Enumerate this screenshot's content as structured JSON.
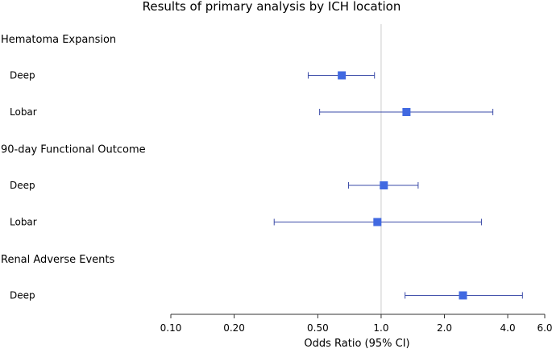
{
  "chart_data": {
    "type": "forest",
    "title": "Results of primary analysis by ICH location",
    "xlabel": "Odds Ratio (95% CI)",
    "x_scale": "log",
    "xlim": [
      0.1,
      6.0
    ],
    "xticks": [
      0.1,
      0.2,
      0.5,
      1.0,
      2.0,
      4.0,
      6.0
    ],
    "xtick_labels": [
      "0.10",
      "0.20",
      "0.50",
      "1.0",
      "2.0",
      "4.0",
      "6.0"
    ],
    "reference_line": 1.0,
    "grid": false,
    "groups": [
      {
        "name": "Hematoma Expansion",
        "rows": [
          {
            "label": "Deep",
            "or": 0.65,
            "ci_low": 0.45,
            "ci_high": 0.93
          },
          {
            "label": "Lobar",
            "or": 1.32,
            "ci_low": 0.51,
            "ci_high": 3.4
          }
        ]
      },
      {
        "name": "90-day Functional Outcome",
        "rows": [
          {
            "label": "Deep",
            "or": 1.03,
            "ci_low": 0.7,
            "ci_high": 1.5
          },
          {
            "label": "Lobar",
            "or": 0.96,
            "ci_low": 0.31,
            "ci_high": 3.0
          }
        ]
      },
      {
        "name": "Renal Adverse Events",
        "rows": [
          {
            "label": "Deep",
            "or": 2.45,
            "ci_low": 1.3,
            "ci_high": 4.7
          }
        ]
      }
    ],
    "colors": {
      "marker": "#4169e1",
      "ci_line": "#3b4ba8",
      "reference_line": "#cccccc",
      "axis": "#333333"
    }
  }
}
